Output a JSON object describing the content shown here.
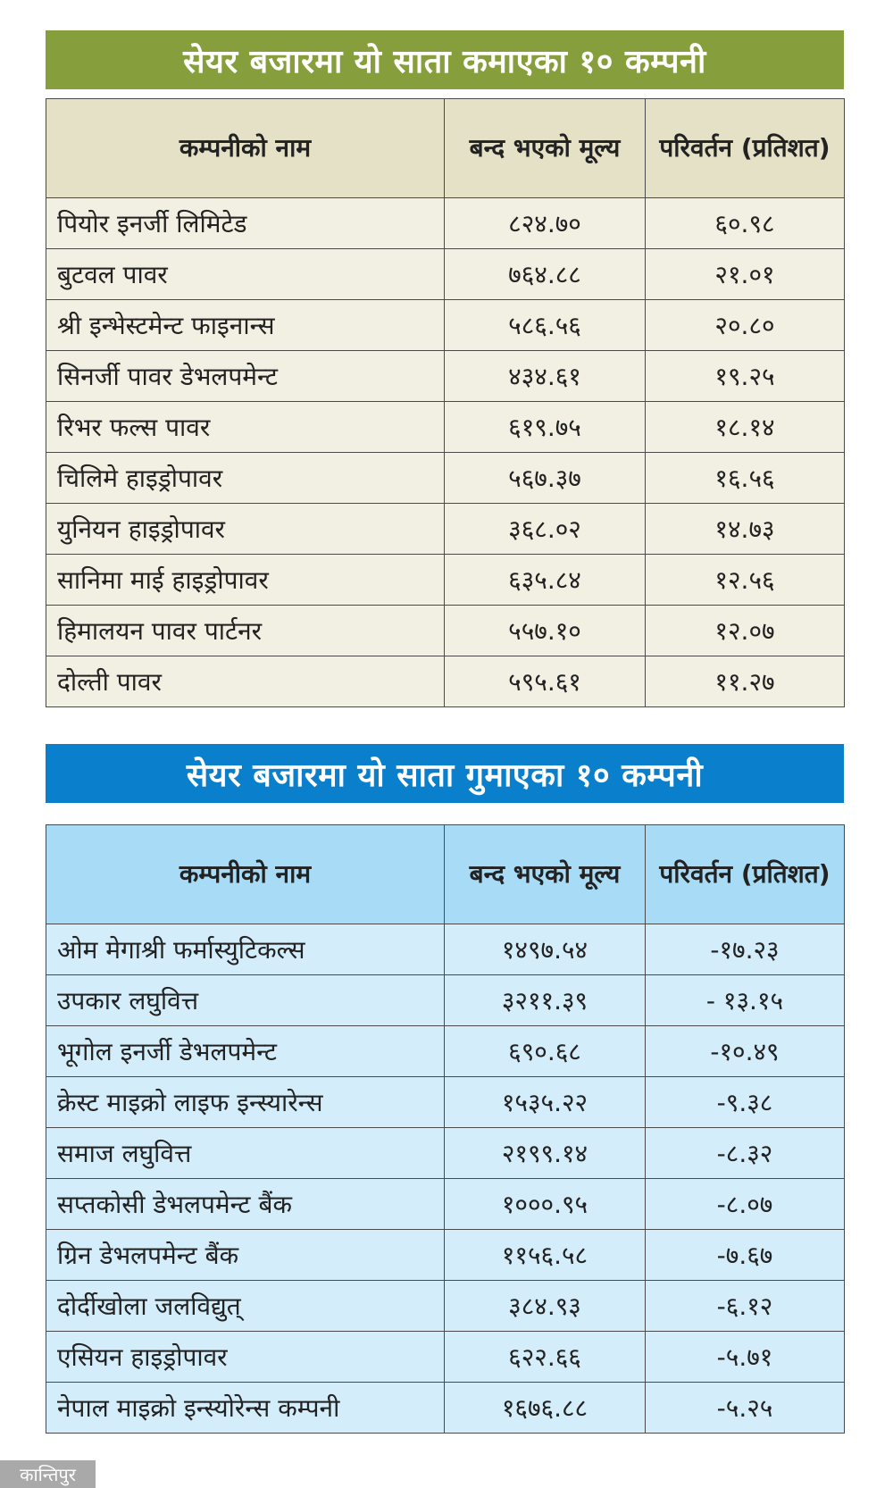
{
  "gainers": {
    "title": "सेयर बजारमा यो साता कमाएका १० कम्पनी",
    "accent_color": "#879e3c",
    "headers": [
      "कम्पनीको नाम",
      "बन्द भएको मूल्य",
      "परिवर्तन (प्रतिशत)"
    ],
    "rows": [
      {
        "name": "पियोर इनर्जी लिमिटेड",
        "price": "८२४.७०",
        "change": "६०.९८"
      },
      {
        "name": "बुटवल पावर",
        "price": "७६४.८८",
        "change": "२१.०१"
      },
      {
        "name": "श्री इन्भेस्टमेन्ट फाइनान्स",
        "price": "५८६.५६",
        "change": "२०.८०"
      },
      {
        "name": "सिनर्जी पावर डेभलपमेन्ट",
        "price": "४३४.६१",
        "change": "१९.२५"
      },
      {
        "name": "रिभर फल्स पावर",
        "price": "६१९.७५",
        "change": "१८.१४"
      },
      {
        "name": "चिलिमे हाइड्रोपावर",
        "price": "५६७.३७",
        "change": "१६.५६"
      },
      {
        "name": "युनियन हाइड्रोपावर",
        "price": "३६८.०२",
        "change": "१४.७३"
      },
      {
        "name": "सानिमा माई हाइड्रोपावर",
        "price": "६३५.८४",
        "change": "१२.५६"
      },
      {
        "name": "हिमालयन पावर पार्टनर",
        "price": "५५७.१०",
        "change": "१२.०७"
      },
      {
        "name": "दोल्ती पावर",
        "price": "५९५.६१",
        "change": "११.२७"
      }
    ]
  },
  "losers": {
    "title": "सेयर बजारमा यो साता गुमाएका १० कम्पनी",
    "accent_color": "#0a80cc",
    "headers": [
      "कम्पनीको नाम",
      "बन्द भएको मूल्य",
      "परिवर्तन (प्रतिशत)"
    ],
    "rows": [
      {
        "name": "ओम मेगाश्री फर्मास्युटिकल्स",
        "price": "१४९७.५४",
        "change": "-१७.२३"
      },
      {
        "name": "उपकार लघुवित्त",
        "price": "३२११.३९",
        "change": "- १३.१५"
      },
      {
        "name": "भूगोल इनर्जी डेभलपमेन्ट",
        "price": "६९०.६८",
        "change": "-१०.४९"
      },
      {
        "name": "क्रेस्ट माइक्रो लाइफ इन्स्यारेन्स",
        "price": "१५३५.२२",
        "change": "-९.३८"
      },
      {
        "name": "समाज लघुवित्त",
        "price": "२१९९.१४",
        "change": "-८.३२"
      },
      {
        "name": "सप्तकोसी डेभलपमेन्ट बैंक",
        "price": "१०००.९५",
        "change": "-८.०७"
      },
      {
        "name": "ग्रिन डेभलपमेन्ट बैंक",
        "price": "११५६.५८",
        "change": "-७.६७"
      },
      {
        "name": "दोर्दीखोला जलविद्युत्",
        "price": "३८४.९३",
        "change": "-६.१२"
      },
      {
        "name": "एसियन हाइड्रोपावर",
        "price": "६२२.६६",
        "change": "-५.७१"
      },
      {
        "name": "नेपाल माइक्रो इन्स्योरेन्स कम्पनी",
        "price": "१६७६.८८",
        "change": "-५.२५"
      }
    ]
  },
  "logo": "कान्तिपुर"
}
